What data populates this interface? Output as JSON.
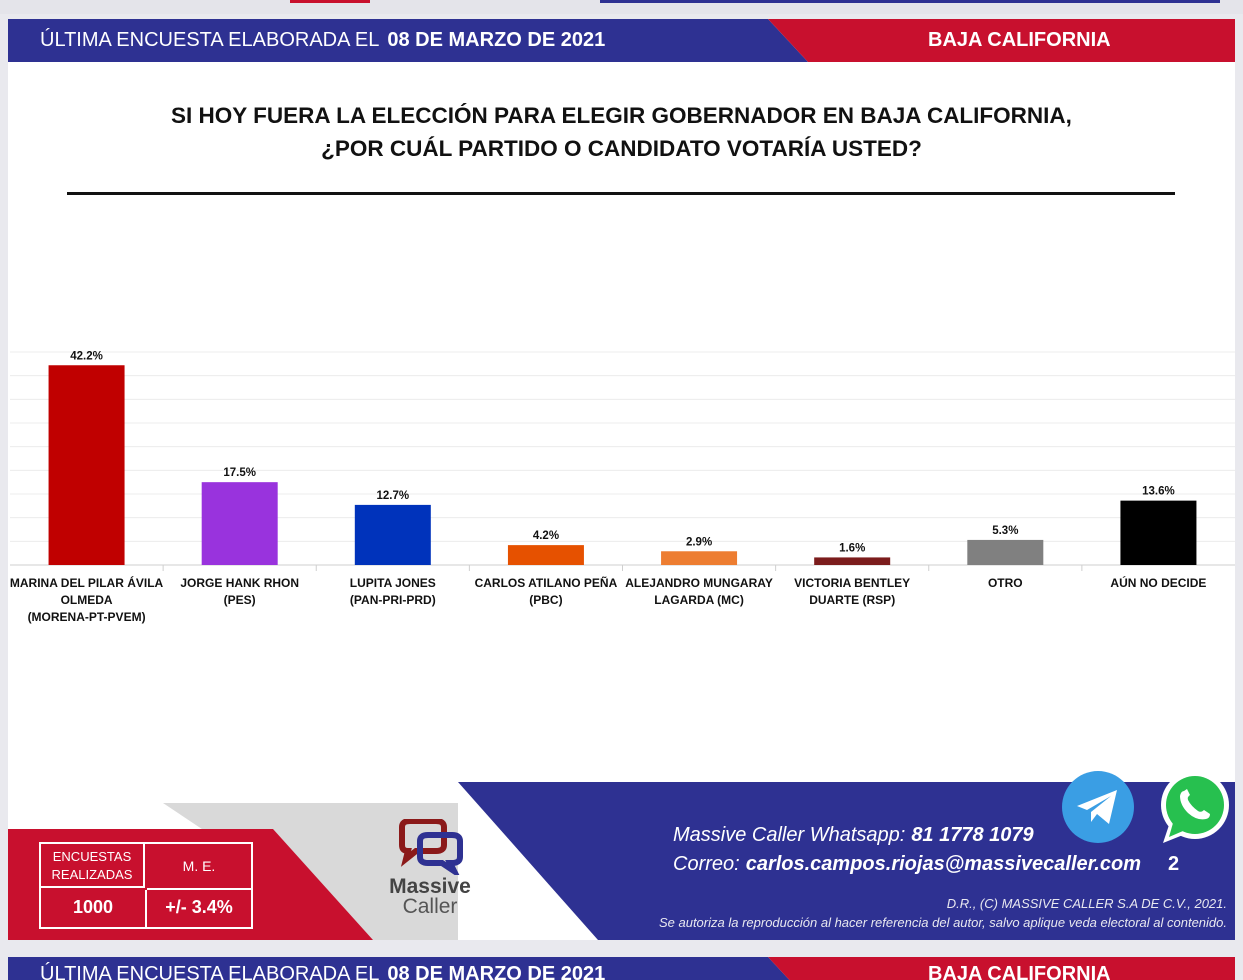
{
  "header": {
    "left_prefix": "ÚLTIMA ENCUESTA ELABORADA EL",
    "date": "08 DE MARZO DE 2021",
    "region": "BAJA CALIFORNIA",
    "color_blue": "#2e3192",
    "color_red": "#c8102e"
  },
  "question": {
    "line1": "SI HOY FUERA LA ELECCIÓN PARA ELEGIR GOBERNADOR EN BAJA CALIFORNIA,",
    "line2": "¿POR CUÁL PARTIDO O CANDIDATO VOTARÍA USTED?"
  },
  "chart_data": {
    "type": "bar",
    "title": "",
    "xlabel": "",
    "ylabel": "",
    "ylim": [
      0,
      45
    ],
    "grid": true,
    "categories": [
      [
        "MARINA DEL PILAR ÁVILA",
        "OLMEDA",
        "(MORENA-PT-PVEM)"
      ],
      [
        "JORGE HANK RHON",
        "(PES)"
      ],
      [
        "LUPITA JONES",
        "(PAN-PRI-PRD)"
      ],
      [
        "CARLOS ATILANO PEÑA",
        "(PBC)"
      ],
      [
        "ALEJANDRO MUNGARAY",
        "LAGARDA (MC)"
      ],
      [
        "VICTORIA BENTLEY",
        "DUARTE (RSP)"
      ],
      [
        "OTRO"
      ],
      [
        "AÚN NO DECIDE"
      ]
    ],
    "values": [
      42.2,
      17.5,
      12.7,
      4.2,
      2.9,
      1.6,
      5.3,
      13.6
    ],
    "labels": [
      "42.2%",
      "17.5%",
      "12.7%",
      "4.2%",
      "2.9%",
      "1.6%",
      "5.3%",
      "13.6%"
    ],
    "colors": [
      "#c00000",
      "#9933dd",
      "#0033bb",
      "#e65100",
      "#ed7d31",
      "#7b1c1c",
      "#808080",
      "#000000"
    ]
  },
  "stats": {
    "surveys_label": "ENCUESTAS REALIZADAS",
    "surveys_value": "1000",
    "me_label": "M. E.",
    "me_value": "+/- 3.4%"
  },
  "brand": {
    "name_line1": "Massive",
    "name_line2": "Caller"
  },
  "contact": {
    "whatsapp_label": "Massive Caller Whatsapp:",
    "whatsapp_value": "81 1778 1079",
    "email_label": "Correo:",
    "email_value": "carlos.campos.riojas@massivecaller.com",
    "page_number": "2",
    "legal_line1": "D.R., (C) MASSIVE CALLER S.A DE C.V., 2021.",
    "legal_line2": "Se autoriza la reproducción al hacer referencia del autor, salvo aplique veda electoral al contenido."
  },
  "icons": {
    "telegram": "telegram-icon",
    "whatsapp": "whatsapp-icon"
  }
}
